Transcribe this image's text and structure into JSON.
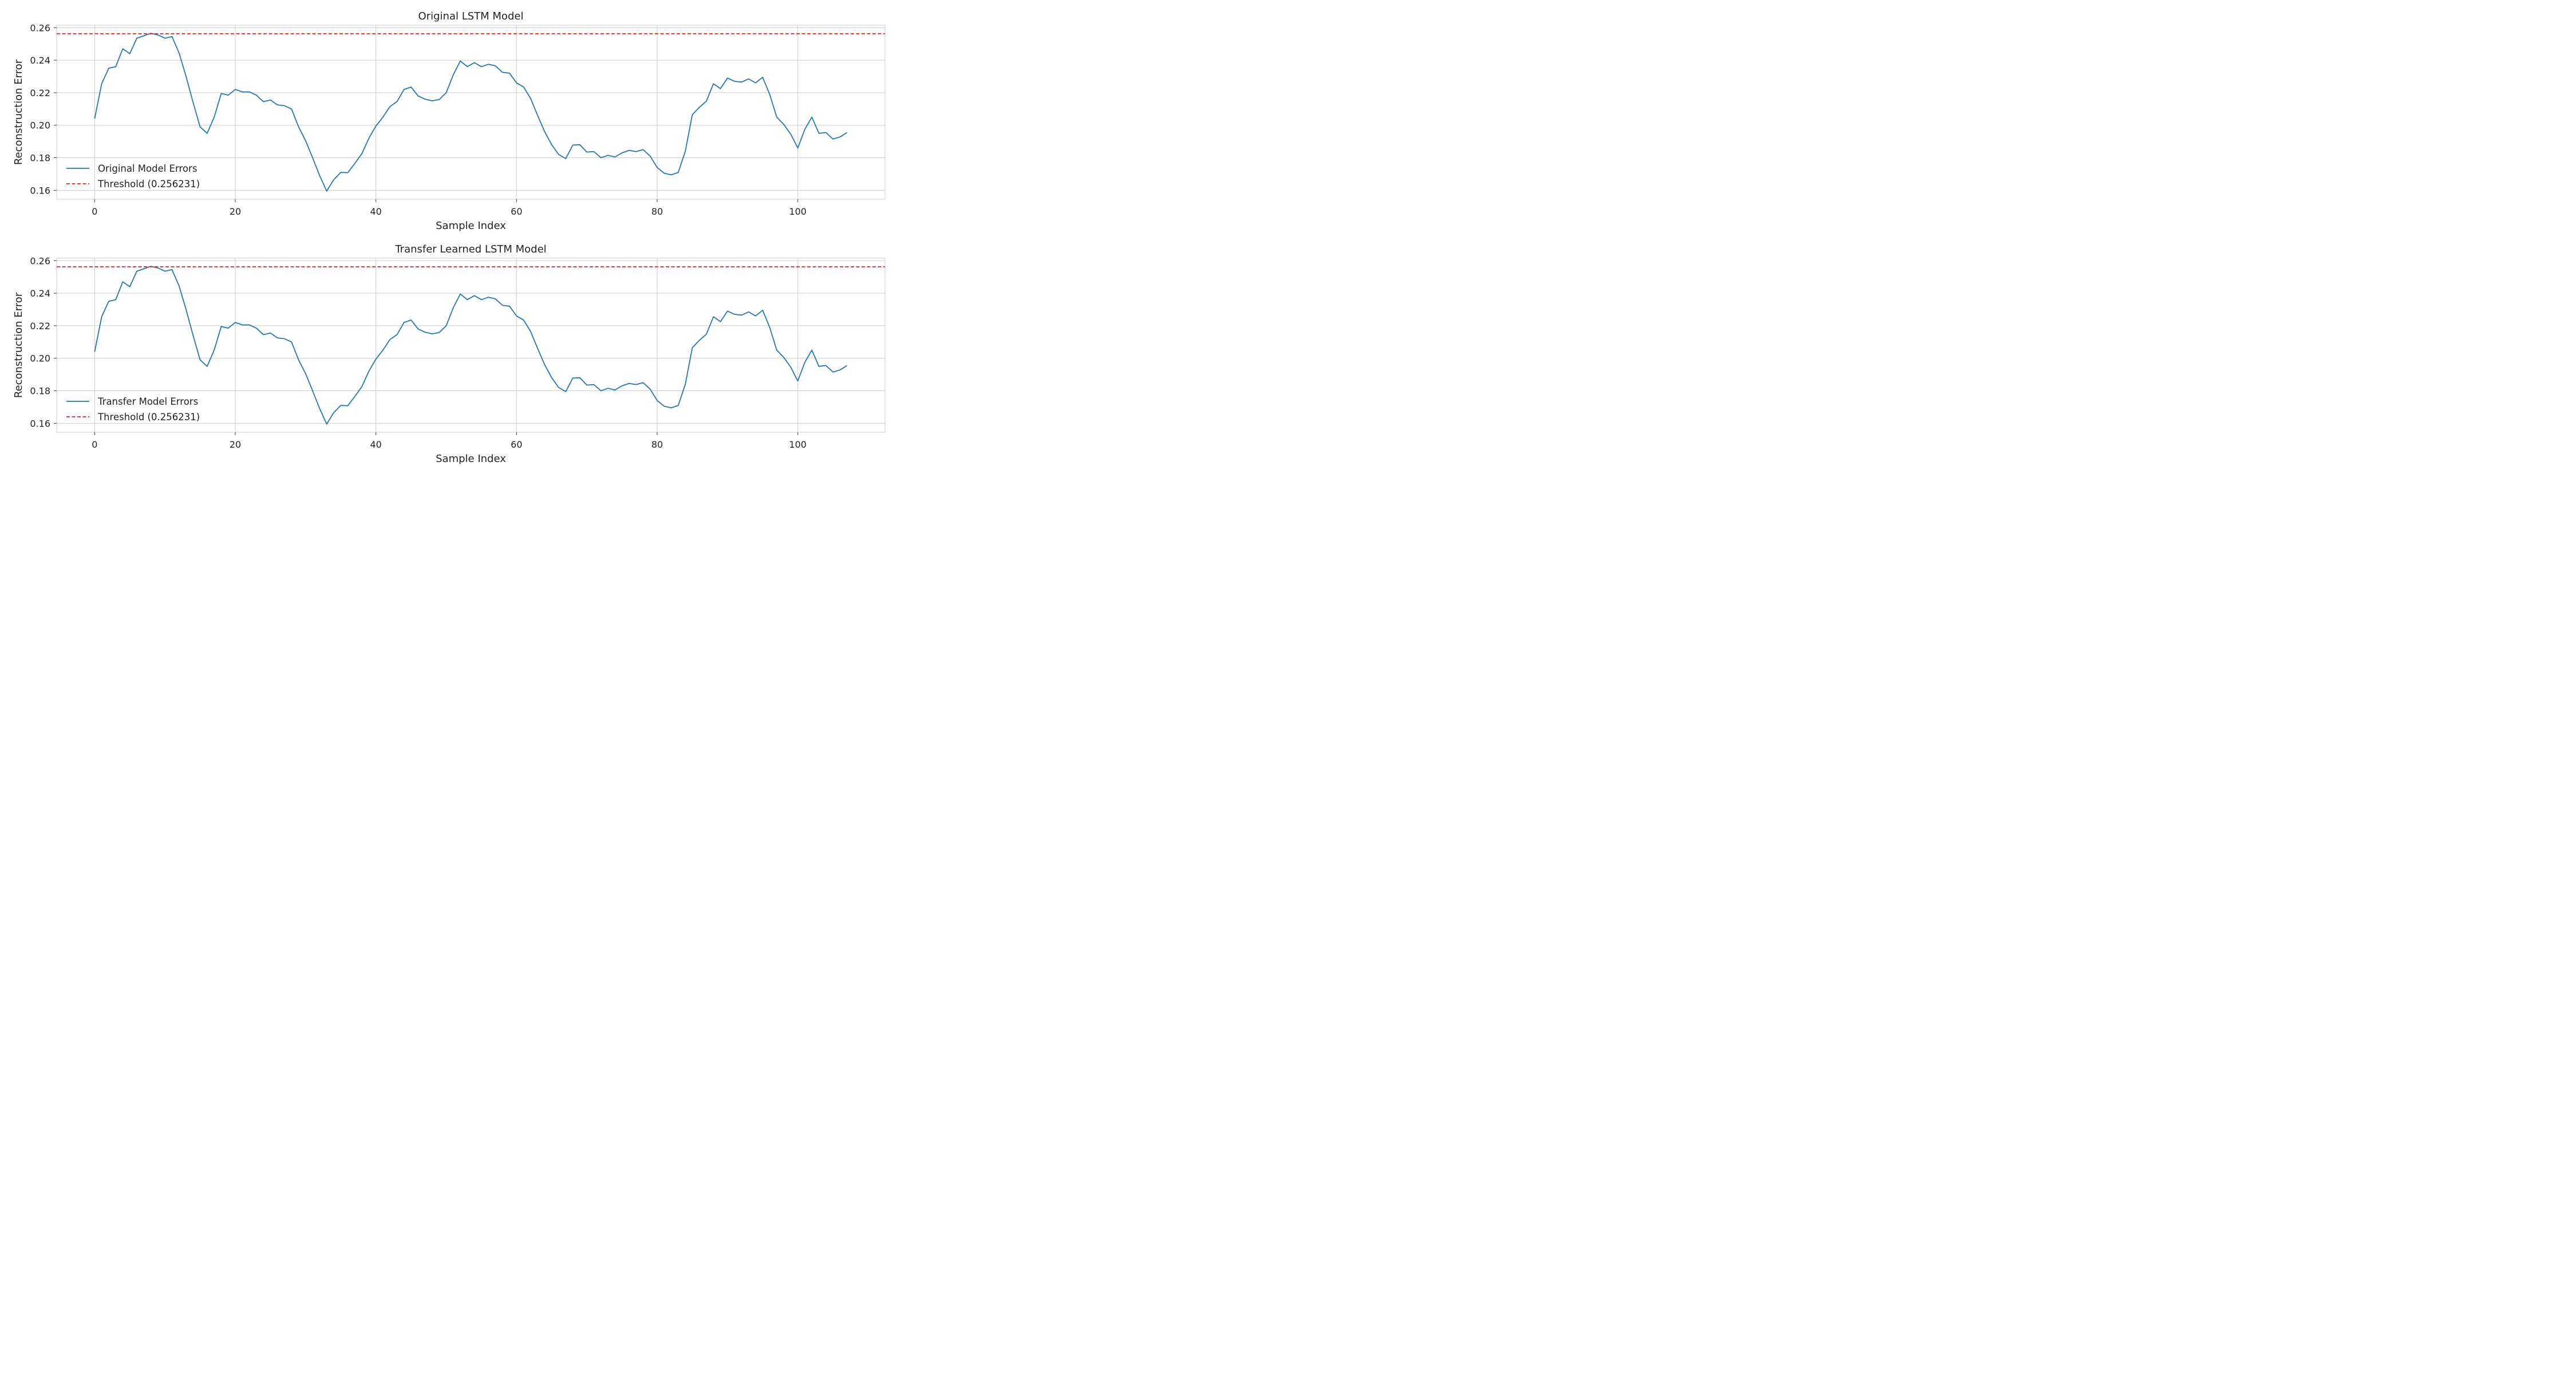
{
  "colors": {
    "series": "#1f77b4",
    "threshold": "#e8231e",
    "grid": "#cccccc"
  },
  "chart_data": [
    {
      "type": "line",
      "title": "Original LSTM Model",
      "xlabel": "Sample Index",
      "ylabel": "Reconstruction Error",
      "xlim": [
        -5.4,
        112.4
      ],
      "ylim": [
        0.1545,
        0.2615
      ],
      "xticks": [
        "0",
        "20",
        "40",
        "60",
        "80",
        "100"
      ],
      "yticks": [
        "0.16",
        "0.18",
        "0.20",
        "0.22",
        "0.24",
        "0.26"
      ],
      "grid": true,
      "legend_position": "lower-left",
      "series": [
        {
          "name": "Original Model Errors",
          "style": "solid",
          "values": [
            0.204,
            0.2255,
            0.235,
            0.236,
            0.247,
            0.244,
            0.2535,
            0.255,
            0.2565,
            0.2555,
            0.2535,
            0.2545,
            0.2445,
            0.23,
            0.214,
            0.199,
            0.195,
            0.205,
            0.2195,
            0.2185,
            0.222,
            0.2205,
            0.2205,
            0.2185,
            0.2145,
            0.2155,
            0.2125,
            0.212,
            0.21,
            0.199,
            0.1905,
            0.18,
            0.169,
            0.1595,
            0.1665,
            0.171,
            0.1708,
            0.1765,
            0.1825,
            0.192,
            0.1995,
            0.205,
            0.2115,
            0.2145,
            0.222,
            0.2235,
            0.218,
            0.216,
            0.215,
            0.2158,
            0.22,
            0.231,
            0.2395,
            0.236,
            0.2385,
            0.236,
            0.2375,
            0.2365,
            0.2325,
            0.232,
            0.226,
            0.2235,
            0.2165,
            0.206,
            0.196,
            0.188,
            0.182,
            0.1795,
            0.1878,
            0.188,
            0.1835,
            0.1838,
            0.18,
            0.1815,
            0.1805,
            0.183,
            0.1845,
            0.1838,
            0.185,
            0.181,
            0.174,
            0.1705,
            0.1695,
            0.171,
            0.184,
            0.2065,
            0.211,
            0.2148,
            0.2255,
            0.2225,
            0.229,
            0.227,
            0.2265,
            0.2285,
            0.226,
            0.2295,
            0.219,
            0.205,
            0.2005,
            0.1945,
            0.186,
            0.1975,
            0.205,
            0.195,
            0.1955,
            0.1915,
            0.1928,
            0.1955
          ]
        },
        {
          "name": "Threshold (0.256231)",
          "style": "dashed",
          "value": 0.256231
        }
      ]
    },
    {
      "type": "line",
      "title": "Transfer Learned LSTM Model",
      "xlabel": "Sample Index",
      "ylabel": "Reconstruction Error",
      "xlim": [
        -5.4,
        112.4
      ],
      "ylim": [
        0.1545,
        0.2615
      ],
      "xticks": [
        "0",
        "20",
        "40",
        "60",
        "80",
        "100"
      ],
      "yticks": [
        "0.16",
        "0.18",
        "0.20",
        "0.22",
        "0.24",
        "0.26"
      ],
      "grid": true,
      "legend_position": "lower-left",
      "series": [
        {
          "name": "Transfer Model Errors",
          "style": "solid",
          "values": [
            0.204,
            0.2255,
            0.235,
            0.236,
            0.247,
            0.244,
            0.2535,
            0.255,
            0.2565,
            0.2555,
            0.2535,
            0.2545,
            0.2445,
            0.23,
            0.214,
            0.199,
            0.195,
            0.205,
            0.2195,
            0.2185,
            0.222,
            0.2205,
            0.2205,
            0.2185,
            0.2145,
            0.2155,
            0.2125,
            0.212,
            0.21,
            0.199,
            0.1905,
            0.18,
            0.169,
            0.1595,
            0.1665,
            0.171,
            0.1708,
            0.1765,
            0.1825,
            0.192,
            0.1995,
            0.205,
            0.2115,
            0.2145,
            0.222,
            0.2235,
            0.218,
            0.216,
            0.215,
            0.2158,
            0.22,
            0.231,
            0.2395,
            0.236,
            0.2385,
            0.236,
            0.2375,
            0.2365,
            0.2325,
            0.232,
            0.226,
            0.2235,
            0.2165,
            0.206,
            0.196,
            0.188,
            0.182,
            0.1795,
            0.1878,
            0.188,
            0.1835,
            0.1838,
            0.18,
            0.1815,
            0.1805,
            0.183,
            0.1845,
            0.1838,
            0.185,
            0.181,
            0.174,
            0.1705,
            0.1695,
            0.171,
            0.184,
            0.2065,
            0.211,
            0.2148,
            0.2255,
            0.2225,
            0.229,
            0.227,
            0.2265,
            0.2285,
            0.226,
            0.2295,
            0.219,
            0.205,
            0.2005,
            0.1945,
            0.186,
            0.1975,
            0.205,
            0.195,
            0.1955,
            0.1915,
            0.1928,
            0.1955
          ]
        },
        {
          "name": "Threshold (0.256231)",
          "style": "dashed",
          "value": 0.256231
        }
      ]
    }
  ]
}
